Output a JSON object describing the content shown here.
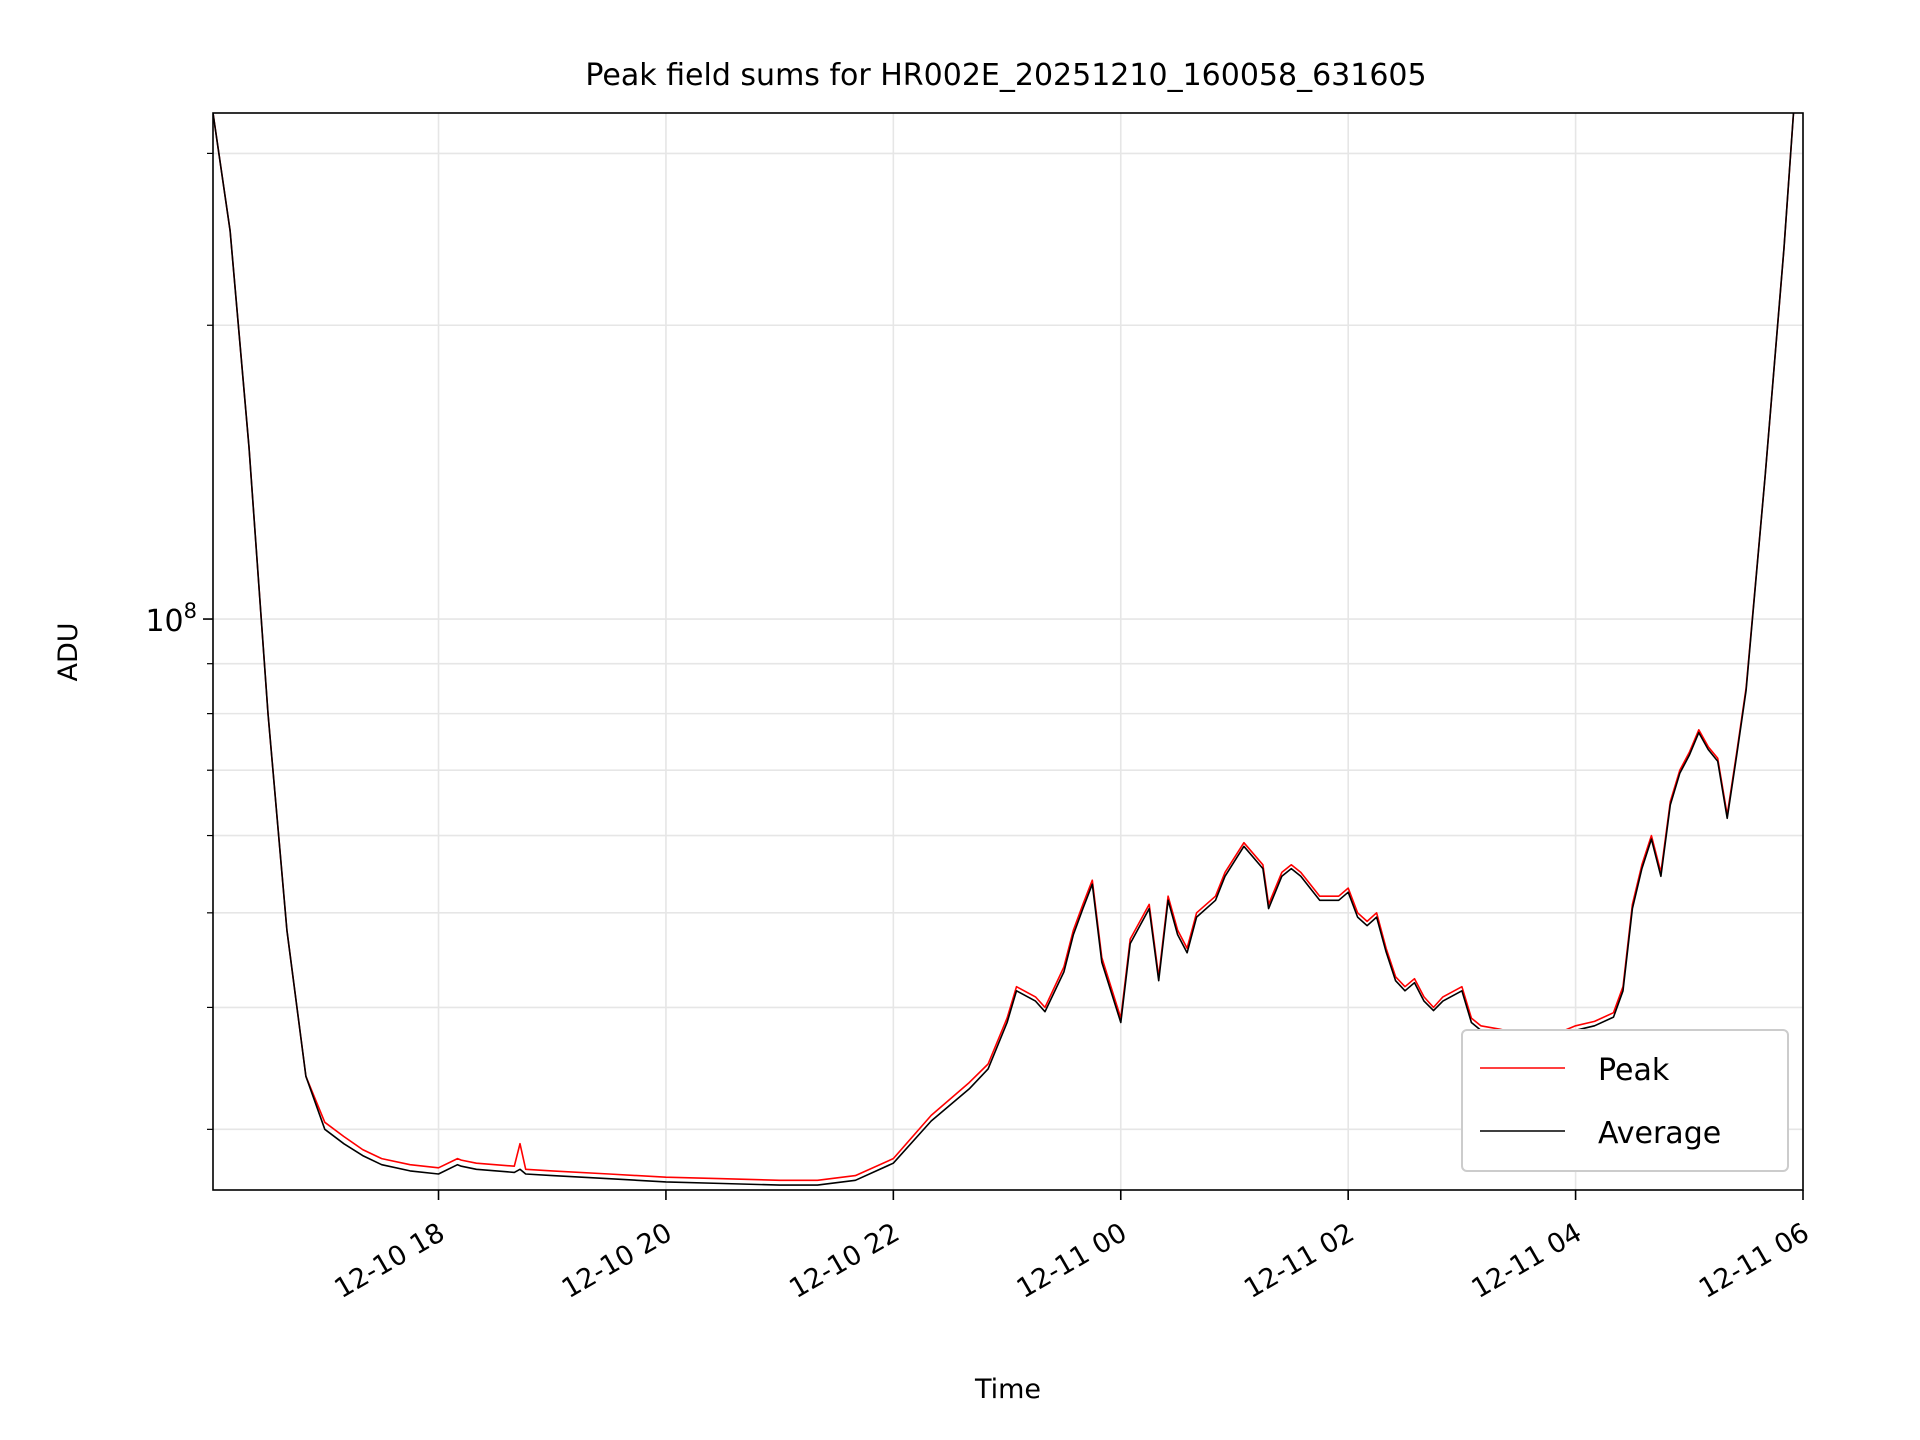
{
  "chart_data": {
    "type": "line",
    "title": "Peak field sums for HR002E_20251210_160058_631605",
    "xlabel": "Time",
    "ylabel": "ADU",
    "y_scale": "log",
    "grid": true,
    "legend_position": "lower-right",
    "xlim": [
      "2025-12-10 16:01",
      "2025-12-11 06:00"
    ],
    "ylim": [
      26000000,
      330000000
    ],
    "x_ticks": [
      {
        "value": "2025-12-10 18:00",
        "label": "12-10 18"
      },
      {
        "value": "2025-12-10 20:00",
        "label": "12-10 20"
      },
      {
        "value": "2025-12-10 22:00",
        "label": "12-10 22"
      },
      {
        "value": "2025-12-11 00:00",
        "label": "12-11 00"
      },
      {
        "value": "2025-12-11 02:00",
        "label": "12-11 02"
      },
      {
        "value": "2025-12-11 04:00",
        "label": "12-11 04"
      },
      {
        "value": "2025-12-11 06:00",
        "label": "12-11 06"
      }
    ],
    "y_major_ticks": [
      {
        "value": 100000000,
        "base": "10",
        "exp": "8"
      }
    ],
    "y_minor_ticks": [
      30000000,
      40000000,
      50000000,
      60000000,
      70000000,
      80000000,
      90000000,
      200000000,
      300000000
    ],
    "colors": {
      "Peak": "#ff0000",
      "Average": "#000000",
      "grid": "#e6e6e6",
      "legend_border": "#cccccc"
    },
    "x": [
      "2025-12-10 16:01",
      "2025-12-10 16:10",
      "2025-12-10 16:20",
      "2025-12-10 16:30",
      "2025-12-10 16:40",
      "2025-12-10 16:50",
      "2025-12-10 17:00",
      "2025-12-10 17:10",
      "2025-12-10 17:20",
      "2025-12-10 17:30",
      "2025-12-10 17:45",
      "2025-12-10 18:00",
      "2025-12-10 18:10",
      "2025-12-10 18:12",
      "2025-12-10 18:20",
      "2025-12-10 18:40",
      "2025-12-10 18:43",
      "2025-12-10 18:46",
      "2025-12-10 19:00",
      "2025-12-10 19:30",
      "2025-12-10 20:00",
      "2025-12-10 20:30",
      "2025-12-10 21:00",
      "2025-12-10 21:20",
      "2025-12-10 21:40",
      "2025-12-10 22:00",
      "2025-12-10 22:20",
      "2025-12-10 22:40",
      "2025-12-10 22:50",
      "2025-12-10 23:00",
      "2025-12-10 23:05",
      "2025-12-10 23:15",
      "2025-12-10 23:20",
      "2025-12-10 23:30",
      "2025-12-10 23:35",
      "2025-12-10 23:40",
      "2025-12-10 23:45",
      "2025-12-10 23:50",
      "2025-12-11 00:00",
      "2025-12-11 00:05",
      "2025-12-11 00:15",
      "2025-12-11 00:20",
      "2025-12-11 00:25",
      "2025-12-11 00:30",
      "2025-12-11 00:35",
      "2025-12-11 00:40",
      "2025-12-11 00:50",
      "2025-12-11 00:55",
      "2025-12-11 01:05",
      "2025-12-11 01:15",
      "2025-12-11 01:18",
      "2025-12-11 01:25",
      "2025-12-11 01:30",
      "2025-12-11 01:35",
      "2025-12-11 01:45",
      "2025-12-11 01:55",
      "2025-12-11 02:00",
      "2025-12-11 02:05",
      "2025-12-11 02:10",
      "2025-12-11 02:15",
      "2025-12-11 02:20",
      "2025-12-11 02:25",
      "2025-12-11 02:30",
      "2025-12-11 02:35",
      "2025-12-11 02:40",
      "2025-12-11 02:45",
      "2025-12-11 02:50",
      "2025-12-11 03:00",
      "2025-12-11 03:05",
      "2025-12-11 03:10",
      "2025-12-11 03:20",
      "2025-12-11 03:30",
      "2025-12-11 03:40",
      "2025-12-11 03:50",
      "2025-12-11 04:00",
      "2025-12-11 04:10",
      "2025-12-11 04:20",
      "2025-12-11 04:25",
      "2025-12-11 04:30",
      "2025-12-11 04:35",
      "2025-12-11 04:40",
      "2025-12-11 04:45",
      "2025-12-11 04:50",
      "2025-12-11 04:55",
      "2025-12-11 05:00",
      "2025-12-11 05:05",
      "2025-12-11 05:10",
      "2025-12-11 05:15",
      "2025-12-11 05:20",
      "2025-12-11 05:25",
      "2025-12-11 05:30",
      "2025-12-11 05:40",
      "2025-12-11 05:50",
      "2025-12-11 05:55"
    ],
    "series": [
      {
        "name": "Peak",
        "values": [
          330000000,
          250000000,
          150000000,
          80000000,
          48000000,
          34000000,
          30500000,
          29500000,
          28600000,
          28000000,
          27600000,
          27400000,
          28000000,
          27900000,
          27700000,
          27500000,
          29000000,
          27300000,
          27200000,
          27000000,
          26800000,
          26700000,
          26600000,
          26600000,
          26900000,
          28000000,
          31000000,
          33500000,
          35000000,
          39000000,
          42000000,
          41000000,
          40000000,
          44000000,
          48000000,
          51000000,
          54000000,
          45000000,
          39000000,
          47000000,
          51000000,
          43000000,
          52000000,
          48000000,
          46000000,
          50000000,
          52000000,
          55000000,
          59000000,
          56000000,
          51000000,
          55000000,
          56000000,
          55000000,
          52000000,
          52000000,
          53000000,
          50000000,
          49000000,
          50000000,
          46000000,
          43000000,
          42000000,
          42800000,
          41000000,
          40000000,
          41000000,
          42000000,
          39000000,
          38300000,
          38000000,
          37600000,
          37400000,
          37600000,
          38300000,
          38700000,
          39500000,
          42000000,
          51000000,
          56000000,
          60000000,
          55000000,
          65000000,
          70000000,
          73000000,
          77000000,
          74000000,
          72000000,
          63000000,
          73000000,
          85000000,
          140000000,
          240000000,
          330000000
        ]
      },
      {
        "name": "Average",
        "values": [
          330000000,
          250000000,
          150000000,
          80000000,
          48000000,
          34000000,
          30000000,
          29000000,
          28200000,
          27600000,
          27200000,
          27000000,
          27600000,
          27500000,
          27300000,
          27100000,
          27300000,
          27000000,
          26900000,
          26700000,
          26500000,
          26400000,
          26300000,
          26300000,
          26600000,
          27700000,
          30600000,
          33000000,
          34600000,
          38600000,
          41600000,
          40600000,
          39600000,
          43500000,
          47500000,
          50500000,
          53500000,
          44500000,
          38600000,
          46500000,
          50500000,
          42600000,
          51500000,
          47500000,
          45500000,
          49500000,
          51500000,
          54500000,
          58500000,
          55500000,
          50500000,
          54500000,
          55500000,
          54500000,
          51500000,
          51500000,
          52500000,
          49500000,
          48500000,
          49500000,
          45600000,
          42600000,
          41600000,
          42400000,
          40600000,
          39700000,
          40600000,
          41600000,
          38600000,
          37900000,
          37600000,
          37200000,
          37000000,
          37200000,
          37900000,
          38300000,
          39100000,
          41600000,
          50500000,
          55500000,
          59500000,
          54500000,
          64500000,
          69500000,
          72500000,
          76500000,
          73500000,
          71500000,
          62500000,
          72500000,
          84500000,
          140000000,
          240000000,
          330000000
        ]
      }
    ]
  }
}
